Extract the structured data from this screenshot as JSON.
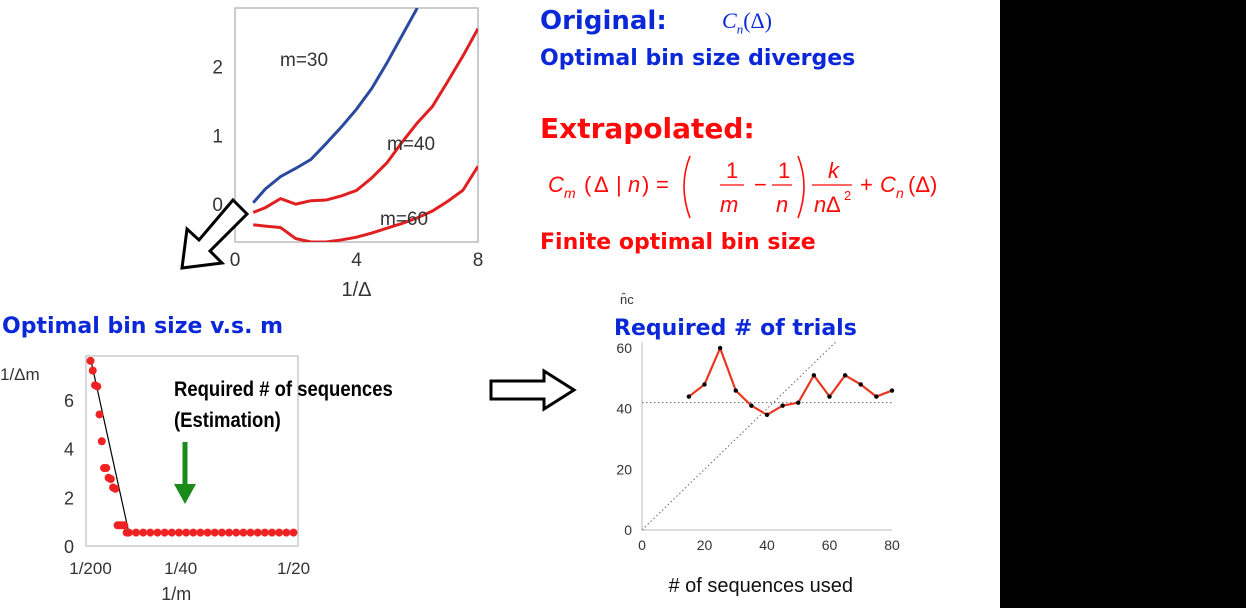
{
  "slide": {
    "original_label": "Original:",
    "original_formula": "Cn(Δ)",
    "original_desc": "Optimal bin size diverges",
    "extrapolated_label": "Extrapolated:",
    "extrapolated_formula": "Cm(Δ | n) = (1/m − 1/n) k/(nΔ²) + Cn(Δ)",
    "extrapolated_desc": "Finite optimal bin size",
    "bin_vs_m_title": "Optimal bin size v.s. m",
    "trials_title": "Required # of trials",
    "required_seq_line1": "Required # of sequences",
    "required_seq_line2": "(Estimation)",
    "colors": {
      "blue": "#0a28d8",
      "red": "#ff0a0a",
      "green": "#1a8a1a"
    }
  },
  "chart_data": [
    {
      "type": "line",
      "xlabel": "1/Δ",
      "ylabel": "",
      "xlim": [
        0,
        8
      ],
      "ylim": [
        -0.55,
        2.85
      ],
      "xticks": [
        "0",
        "4",
        "8"
      ],
      "yticks": [
        "0",
        "1",
        "2"
      ],
      "series": [
        {
          "name": "m=30",
          "color": "#2a4aa0",
          "x": [
            0.6,
            1.0,
            1.5,
            2.0,
            2.5,
            3.0,
            3.5,
            4.0,
            4.5,
            5.0,
            5.5,
            6.0
          ],
          "y": [
            0.02,
            0.22,
            0.4,
            0.52,
            0.65,
            0.88,
            1.12,
            1.38,
            1.68,
            2.05,
            2.45,
            2.85
          ]
        },
        {
          "name": "m=40",
          "color": "#e02020",
          "x": [
            0.6,
            1.0,
            1.5,
            2.0,
            2.5,
            3.0,
            3.5,
            4.0,
            4.5,
            5.0,
            5.5,
            6.0,
            6.5,
            7.0,
            7.5,
            8.0
          ],
          "y": [
            -0.12,
            -0.05,
            0.08,
            0.0,
            0.05,
            0.06,
            0.12,
            0.2,
            0.38,
            0.6,
            0.9,
            1.18,
            1.42,
            1.78,
            2.15,
            2.55
          ]
        },
        {
          "name": "m=60",
          "color": "#e02020",
          "x": [
            0.6,
            1.0,
            1.5,
            2.0,
            2.5,
            3.0,
            3.5,
            4.0,
            4.5,
            5.0,
            5.5,
            6.0,
            6.5,
            7.0,
            7.5,
            8.0
          ],
          "y": [
            -0.3,
            -0.32,
            -0.34,
            -0.5,
            -0.55,
            -0.55,
            -0.52,
            -0.48,
            -0.42,
            -0.35,
            -0.28,
            -0.2,
            -0.1,
            0.04,
            0.2,
            0.55
          ]
        }
      ]
    },
    {
      "type": "scatter",
      "xlabel": "1/m",
      "ylabel": "1/Δm",
      "ylim": [
        0,
        7.8
      ],
      "xticks": [
        "1/200",
        "1/40",
        "1/20"
      ],
      "yticks": [
        "0",
        "2",
        "4",
        "6"
      ],
      "x": [
        0.005,
        0.0055,
        0.006,
        0.0065,
        0.007,
        0.0075,
        0.008,
        0.0085,
        0.009,
        0.0095,
        0.01,
        0.0105,
        0.011,
        0.0115,
        0.012,
        0.0125,
        0.013,
        0.0135,
        0.014,
        0.0145,
        0.015,
        0.0155,
        0.016,
        0.0165,
        0.017,
        0.0175,
        0.018,
        0.0185,
        0.019,
        0.0195,
        0.02,
        0.0205,
        0.021,
        0.0215,
        0.022,
        0.0225,
        0.023,
        0.0235,
        0.024,
        0.0245,
        0.025
      ],
      "y": [
        7.6,
        7.2,
        6.6,
        6.55,
        5.4,
        4.3,
        3.2,
        3.2,
        2.8,
        2.75,
        2.4,
        2.35,
        0.85,
        0.85,
        0.85,
        0.85,
        0.55,
        0.55,
        0.55,
        0.55,
        0.55,
        0.55,
        0.55,
        0.55,
        0.55,
        0.55,
        0.55,
        0.55,
        0.55,
        0.55,
        0.55,
        0.55,
        0.55,
        0.55,
        0.55,
        0.55,
        0.55,
        0.55,
        0.55,
        0.55,
        0.55
      ]
    },
    {
      "type": "line",
      "xlabel": "# of sequences used",
      "ylabel": "n̂c",
      "xlim": [
        0,
        80
      ],
      "ylim": [
        0,
        62
      ],
      "xticks": [
        "0",
        "20",
        "40",
        "60",
        "80"
      ],
      "yticks": [
        "0",
        "20",
        "40",
        "60"
      ],
      "x": [
        15,
        20,
        25,
        30,
        35,
        40,
        45,
        50,
        55,
        60,
        65,
        70,
        75,
        80
      ],
      "y": [
        44,
        48,
        60,
        46,
        41,
        38,
        41,
        42,
        51,
        44,
        51,
        48,
        44,
        46
      ],
      "reference_y": 42
    }
  ]
}
